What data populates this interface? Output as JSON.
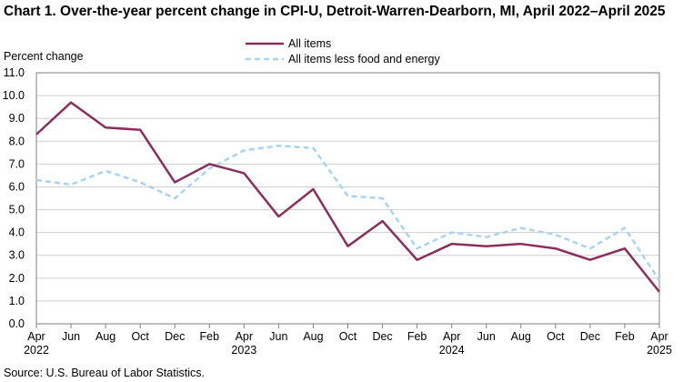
{
  "chart_data": {
    "type": "line",
    "title": "Chart 1. Over-the-year percent change in CPI-U, Detroit-Warren-Dearborn, MI, April 2022–April 2025",
    "ylabel": "Percent change",
    "xlabel": "",
    "ylim": [
      0,
      11
    ],
    "yticks": [
      "0.0",
      "1.0",
      "2.0",
      "3.0",
      "4.0",
      "5.0",
      "6.0",
      "7.0",
      "8.0",
      "9.0",
      "10.0",
      "11.0"
    ],
    "x_tick_labels": [
      "Apr",
      "Jun",
      "Aug",
      "Oct",
      "Dec",
      "Feb",
      "Apr",
      "Jun",
      "Aug",
      "Oct",
      "Dec",
      "Feb",
      "Apr",
      "Jun",
      "Aug",
      "Oct",
      "Dec",
      "Feb",
      "Apr"
    ],
    "x_year_labels": [
      {
        "index": 0,
        "label": "2022"
      },
      {
        "index": 6,
        "label": "2023"
      },
      {
        "index": 12,
        "label": "2024"
      },
      {
        "index": 18,
        "label": "2025"
      }
    ],
    "grid": true,
    "legend": "top",
    "series": [
      {
        "name": "All items",
        "color": "#8B2E5C",
        "style": "solid",
        "values": [
          8.3,
          9.7,
          8.6,
          8.5,
          6.2,
          7.0,
          6.6,
          4.7,
          5.9,
          3.4,
          4.5,
          2.8,
          3.5,
          3.4,
          3.5,
          3.3,
          2.8,
          3.3,
          1.4
        ]
      },
      {
        "name": "All items less food and energy",
        "color": "#A9D3F5",
        "style": "dashed",
        "values": [
          6.3,
          6.1,
          6.7,
          6.2,
          5.5,
          6.8,
          7.6,
          7.8,
          7.7,
          5.6,
          5.5,
          3.3,
          4.0,
          3.8,
          4.2,
          3.9,
          3.3,
          4.2,
          1.9
        ]
      }
    ]
  },
  "source": "Source: U.S. Bureau of Labor Statistics."
}
